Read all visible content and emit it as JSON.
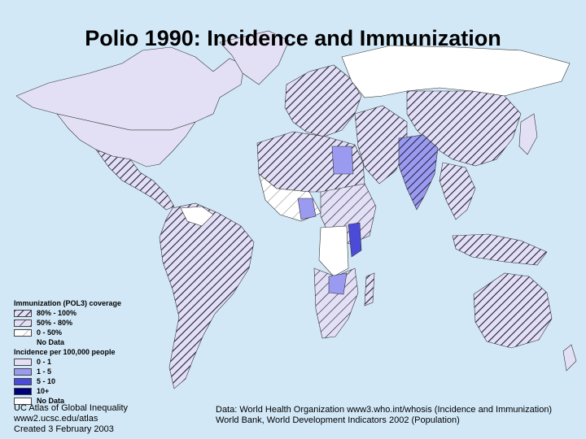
{
  "title": "Polio 1990: Incidence and Immunization",
  "colors": {
    "ocean": "#d2e8f7",
    "incidence_0_1": "#e3e0f5",
    "incidence_1_5": "#9a9af0",
    "incidence_5_10": "#4b4bd8",
    "incidence_10_plus": "#00007a",
    "no_data": "#ffffff",
    "hatch": "#1e1e3c"
  },
  "legend": {
    "immunization_title": "Immunization (POL3) coverage",
    "immunization_items": [
      {
        "label": "80% - 100%",
        "pattern": "dense-hatch"
      },
      {
        "label": "50% - 80%",
        "pattern": "medium-hatch"
      },
      {
        "label": "0 - 50%",
        "pattern": "sparse-hatch"
      },
      {
        "label": "No Data",
        "pattern": "none"
      }
    ],
    "incidence_title": "Incidence per 100,000 people",
    "incidence_items": [
      {
        "label": "0 - 1",
        "color": "#e3e0f5"
      },
      {
        "label": "1 - 5",
        "color": "#9a9af0"
      },
      {
        "label": "5 - 10",
        "color": "#4b4bd8"
      },
      {
        "label": "10+",
        "color": "#00007a"
      },
      {
        "label": "No Data",
        "color": "#ffffff"
      }
    ]
  },
  "credits": {
    "left": [
      "UC Atlas of Global Inequality",
      "www2.ucsc.edu/atlas",
      "Created 3 February 2003"
    ],
    "right": [
      "Data: World Health Organization www3.who.int/whosis (Incidence and Immunization)",
      "World Bank, World Development Indicators 2002 (Population)"
    ]
  }
}
